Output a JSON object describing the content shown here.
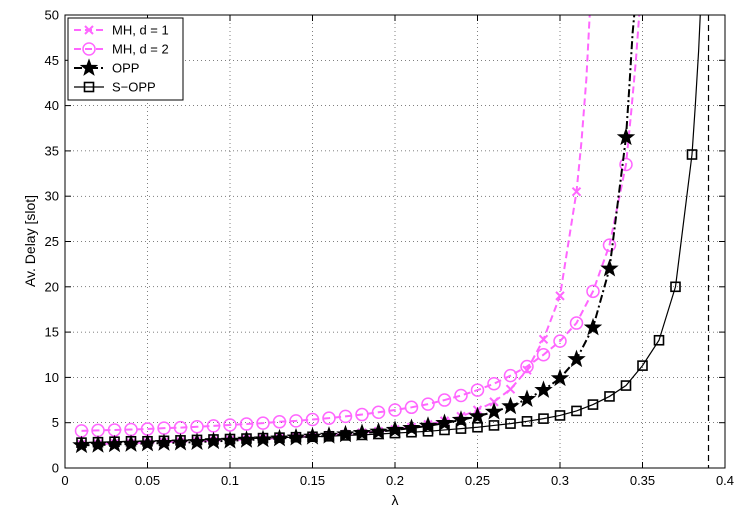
{
  "chart_data": {
    "type": "line",
    "xlabel": "λ",
    "ylabel": "Av. Delay [slot]",
    "xlim": [
      0,
      0.4
    ],
    "ylim": [
      0,
      50
    ],
    "xticks": [
      0,
      0.05,
      0.1,
      0.15,
      0.2,
      0.25,
      0.3,
      0.35,
      0.4
    ],
    "xtick_labels": [
      "0",
      "0.05",
      "0.1",
      "0.15",
      "0.2",
      "0.25",
      "0.3",
      "0.35",
      "0.4"
    ],
    "yticks": [
      0,
      5,
      10,
      15,
      20,
      25,
      30,
      35,
      40,
      45,
      50
    ],
    "ytick_labels": [
      "0",
      "5",
      "10",
      "15",
      "20",
      "25",
      "30",
      "35",
      "40",
      "45",
      "50"
    ],
    "grid": true,
    "legend_position": "top-left",
    "vertical_line": {
      "x": 0.39,
      "style": "dashed",
      "color": "#000000"
    },
    "series": [
      {
        "name": "MH, d = 1",
        "color": "#ff66ff",
        "line_style": "dashed",
        "marker": "x",
        "points": [
          [
            0.01,
            2.6
          ],
          [
            0.02,
            2.65
          ],
          [
            0.03,
            2.7
          ],
          [
            0.04,
            2.75
          ],
          [
            0.05,
            2.8
          ],
          [
            0.06,
            2.85
          ],
          [
            0.07,
            2.9
          ],
          [
            0.08,
            2.95
          ],
          [
            0.09,
            3.0
          ],
          [
            0.1,
            3.1
          ],
          [
            0.11,
            3.15
          ],
          [
            0.12,
            3.2
          ],
          [
            0.13,
            3.3
          ],
          [
            0.14,
            3.4
          ],
          [
            0.15,
            3.5
          ],
          [
            0.16,
            3.6
          ],
          [
            0.17,
            3.75
          ],
          [
            0.18,
            3.9
          ],
          [
            0.19,
            4.05
          ],
          [
            0.2,
            4.25
          ],
          [
            0.21,
            4.5
          ],
          [
            0.22,
            4.8
          ],
          [
            0.23,
            5.2
          ],
          [
            0.24,
            5.7
          ],
          [
            0.25,
            6.4
          ],
          [
            0.26,
            7.3
          ],
          [
            0.27,
            8.7
          ],
          [
            0.28,
            10.8
          ],
          [
            0.29,
            14.2
          ],
          [
            0.3,
            19.0
          ],
          [
            0.31,
            30.5
          ]
        ],
        "curve": [
          [
            0.3,
            19.0
          ],
          [
            0.305,
            23.0
          ],
          [
            0.31,
            30.5
          ],
          [
            0.313,
            36.0
          ],
          [
            0.316,
            43.0
          ],
          [
            0.318,
            50.0
          ]
        ]
      },
      {
        "name": "MH, d = 2",
        "color": "#ff66ff",
        "line_style": "dashed",
        "marker": "circle",
        "points": [
          [
            0.01,
            4.1
          ],
          [
            0.02,
            4.15
          ],
          [
            0.03,
            4.2
          ],
          [
            0.04,
            4.25
          ],
          [
            0.05,
            4.3
          ],
          [
            0.06,
            4.4
          ],
          [
            0.07,
            4.45
          ],
          [
            0.08,
            4.55
          ],
          [
            0.09,
            4.65
          ],
          [
            0.1,
            4.75
          ],
          [
            0.11,
            4.85
          ],
          [
            0.12,
            4.95
          ],
          [
            0.13,
            5.1
          ],
          [
            0.14,
            5.2
          ],
          [
            0.15,
            5.35
          ],
          [
            0.16,
            5.5
          ],
          [
            0.17,
            5.7
          ],
          [
            0.18,
            5.9
          ],
          [
            0.19,
            6.15
          ],
          [
            0.2,
            6.4
          ],
          [
            0.21,
            6.7
          ],
          [
            0.22,
            7.05
          ],
          [
            0.23,
            7.5
          ],
          [
            0.24,
            8.0
          ],
          [
            0.25,
            8.6
          ],
          [
            0.26,
            9.3
          ],
          [
            0.27,
            10.2
          ],
          [
            0.28,
            11.2
          ],
          [
            0.29,
            12.5
          ],
          [
            0.3,
            14.0
          ],
          [
            0.31,
            16.0
          ],
          [
            0.32,
            19.5
          ],
          [
            0.33,
            24.6
          ],
          [
            0.34,
            33.5
          ]
        ],
        "curve": [
          [
            0.33,
            24.6
          ],
          [
            0.335,
            28.0
          ],
          [
            0.34,
            33.5
          ],
          [
            0.343,
            39.0
          ],
          [
            0.346,
            45.0
          ],
          [
            0.348,
            50.0
          ]
        ]
      },
      {
        "name": "OPP",
        "color": "#000000",
        "line_style": "dashdot",
        "marker": "star",
        "points": [
          [
            0.01,
            2.5
          ],
          [
            0.02,
            2.55
          ],
          [
            0.03,
            2.6
          ],
          [
            0.04,
            2.65
          ],
          [
            0.05,
            2.7
          ],
          [
            0.06,
            2.75
          ],
          [
            0.07,
            2.8
          ],
          [
            0.08,
            2.85
          ],
          [
            0.09,
            2.95
          ],
          [
            0.1,
            3.0
          ],
          [
            0.11,
            3.1
          ],
          [
            0.12,
            3.15
          ],
          [
            0.13,
            3.25
          ],
          [
            0.14,
            3.35
          ],
          [
            0.15,
            3.45
          ],
          [
            0.16,
            3.55
          ],
          [
            0.17,
            3.7
          ],
          [
            0.18,
            3.85
          ],
          [
            0.19,
            4.0
          ],
          [
            0.2,
            4.2
          ],
          [
            0.21,
            4.4
          ],
          [
            0.22,
            4.65
          ],
          [
            0.23,
            4.95
          ],
          [
            0.24,
            5.3
          ],
          [
            0.25,
            5.7
          ],
          [
            0.26,
            6.2
          ],
          [
            0.27,
            6.8
          ],
          [
            0.28,
            7.6
          ],
          [
            0.29,
            8.6
          ],
          [
            0.3,
            9.9
          ],
          [
            0.31,
            12.0
          ],
          [
            0.32,
            15.5
          ],
          [
            0.33,
            22.0
          ],
          [
            0.34,
            36.5
          ]
        ],
        "curve": [
          [
            0.33,
            22.0
          ],
          [
            0.335,
            27.5
          ],
          [
            0.34,
            36.5
          ],
          [
            0.342,
            42.0
          ],
          [
            0.344,
            48.0
          ],
          [
            0.345,
            50.0
          ]
        ]
      },
      {
        "name": "S−OPP",
        "color": "#000000",
        "line_style": "solid",
        "marker": "square",
        "points": [
          [
            0.01,
            2.8
          ],
          [
            0.02,
            2.85
          ],
          [
            0.03,
            2.9
          ],
          [
            0.04,
            2.95
          ],
          [
            0.05,
            2.95
          ],
          [
            0.06,
            3.0
          ],
          [
            0.07,
            3.05
          ],
          [
            0.08,
            3.1
          ],
          [
            0.09,
            3.15
          ],
          [
            0.1,
            3.2
          ],
          [
            0.11,
            3.25
          ],
          [
            0.12,
            3.3
          ],
          [
            0.13,
            3.35
          ],
          [
            0.14,
            3.4
          ],
          [
            0.15,
            3.45
          ],
          [
            0.16,
            3.5
          ],
          [
            0.17,
            3.6
          ],
          [
            0.18,
            3.65
          ],
          [
            0.19,
            3.75
          ],
          [
            0.2,
            3.85
          ],
          [
            0.21,
            3.95
          ],
          [
            0.22,
            4.05
          ],
          [
            0.23,
            4.2
          ],
          [
            0.24,
            4.35
          ],
          [
            0.25,
            4.5
          ],
          [
            0.26,
            4.7
          ],
          [
            0.27,
            4.9
          ],
          [
            0.28,
            5.15
          ],
          [
            0.29,
            5.45
          ],
          [
            0.3,
            5.8
          ],
          [
            0.31,
            6.3
          ],
          [
            0.32,
            7.0
          ],
          [
            0.33,
            7.9
          ],
          [
            0.34,
            9.1
          ],
          [
            0.35,
            11.3
          ],
          [
            0.36,
            14.1
          ],
          [
            0.37,
            20.0
          ],
          [
            0.38,
            34.6
          ]
        ],
        "curve": [
          [
            0.37,
            20.0
          ],
          [
            0.375,
            25.5
          ],
          [
            0.38,
            34.6
          ],
          [
            0.382,
            40.0
          ],
          [
            0.384,
            46.0
          ],
          [
            0.385,
            50.0
          ]
        ]
      }
    ]
  }
}
